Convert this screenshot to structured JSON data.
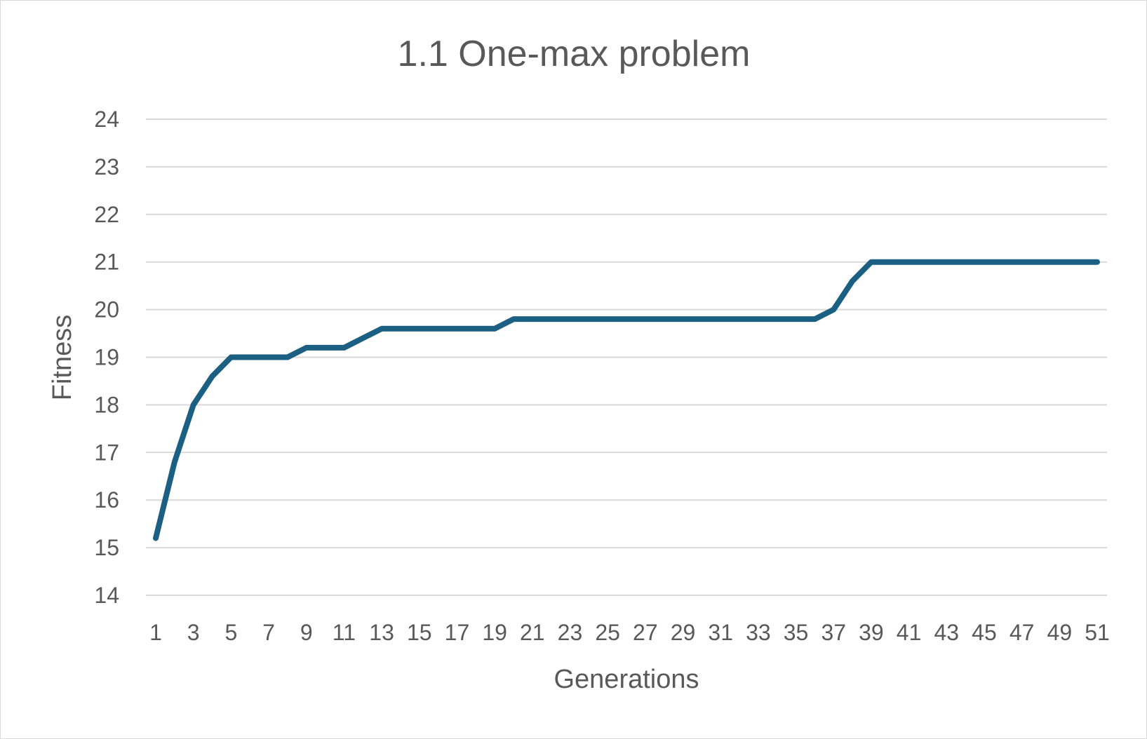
{
  "chart_data": {
    "type": "line",
    "title": "1.1 One-max problem",
    "xlabel": "Generations",
    "ylabel": "Fitness",
    "ylim": [
      14,
      24
    ],
    "yticks": [
      14,
      15,
      16,
      17,
      18,
      19,
      20,
      21,
      22,
      23,
      24
    ],
    "xlim": [
      1,
      51
    ],
    "xtick_labels": [
      1,
      3,
      5,
      7,
      9,
      11,
      13,
      15,
      17,
      19,
      21,
      23,
      25,
      27,
      29,
      31,
      33,
      35,
      37,
      39,
      41,
      43,
      45,
      47,
      49,
      51
    ],
    "grid": true,
    "legend": "none",
    "series": [
      {
        "color": "#1b5f82",
        "x": [
          1,
          2,
          3,
          4,
          5,
          6,
          7,
          8,
          9,
          10,
          11,
          12,
          13,
          14,
          15,
          16,
          17,
          18,
          19,
          20,
          21,
          22,
          23,
          24,
          25,
          26,
          27,
          28,
          29,
          30,
          31,
          32,
          33,
          34,
          35,
          36,
          37,
          38,
          39,
          40,
          41,
          42,
          43,
          44,
          45,
          46,
          47,
          48,
          49,
          50,
          51
        ],
        "values": [
          15.2,
          16.8,
          18.0,
          18.6,
          19.0,
          19.0,
          19.0,
          19.0,
          19.2,
          19.2,
          19.2,
          19.4,
          19.6,
          19.6,
          19.6,
          19.6,
          19.6,
          19.6,
          19.6,
          19.8,
          19.8,
          19.8,
          19.8,
          19.8,
          19.8,
          19.8,
          19.8,
          19.8,
          19.8,
          19.8,
          19.8,
          19.8,
          19.8,
          19.8,
          19.8,
          19.8,
          20.0,
          20.6,
          21.0,
          21.0,
          21.0,
          21.0,
          21.0,
          21.0,
          21.0,
          21.0,
          21.0,
          21.0,
          21.0,
          21.0,
          21.0
        ]
      }
    ]
  }
}
